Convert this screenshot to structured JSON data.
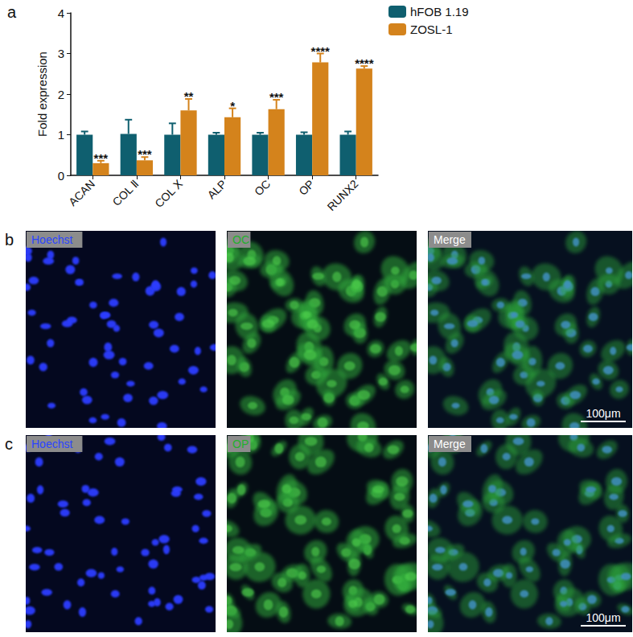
{
  "chart_data": {
    "type": "bar",
    "title": "a",
    "categories": [
      "ACAN",
      "COL Ⅱ",
      "COL Ⅹ",
      "ALP",
      "OC",
      "OP",
      "RUNX2"
    ],
    "series": [
      {
        "name": "hFOB 1.19",
        "color": "#0f5f6f",
        "values": [
          1.0,
          1.02,
          1.0,
          1.0,
          1.0,
          1.0,
          1.0
        ],
        "errors": [
          0.08,
          0.35,
          0.28,
          0.05,
          0.05,
          0.06,
          0.08
        ]
      },
      {
        "name": "ZOSL-1",
        "color": "#d4831c",
        "values": [
          0.3,
          0.37,
          1.6,
          1.43,
          1.63,
          2.78,
          2.63
        ],
        "errors": [
          0.06,
          0.08,
          0.28,
          0.22,
          0.23,
          0.22,
          0.06
        ],
        "annotations": [
          "***",
          "***",
          "**",
          "*",
          "***",
          "****",
          "****"
        ]
      }
    ],
    "y_label": "Fold expression",
    "ylim": [
      0,
      4
    ],
    "yticks": [
      0,
      1,
      2,
      3,
      4
    ],
    "grid": false,
    "legend": "upper right",
    "data_labels": false
  },
  "panels": [
    {
      "letter": "b",
      "channels": [
        "Hoechst",
        "OC",
        "Merge"
      ],
      "scale_bar": "100μm"
    },
    {
      "letter": "c",
      "channels": [
        "Hoechst",
        "OP",
        "Merge"
      ],
      "scale_bar": "100μm"
    }
  ]
}
